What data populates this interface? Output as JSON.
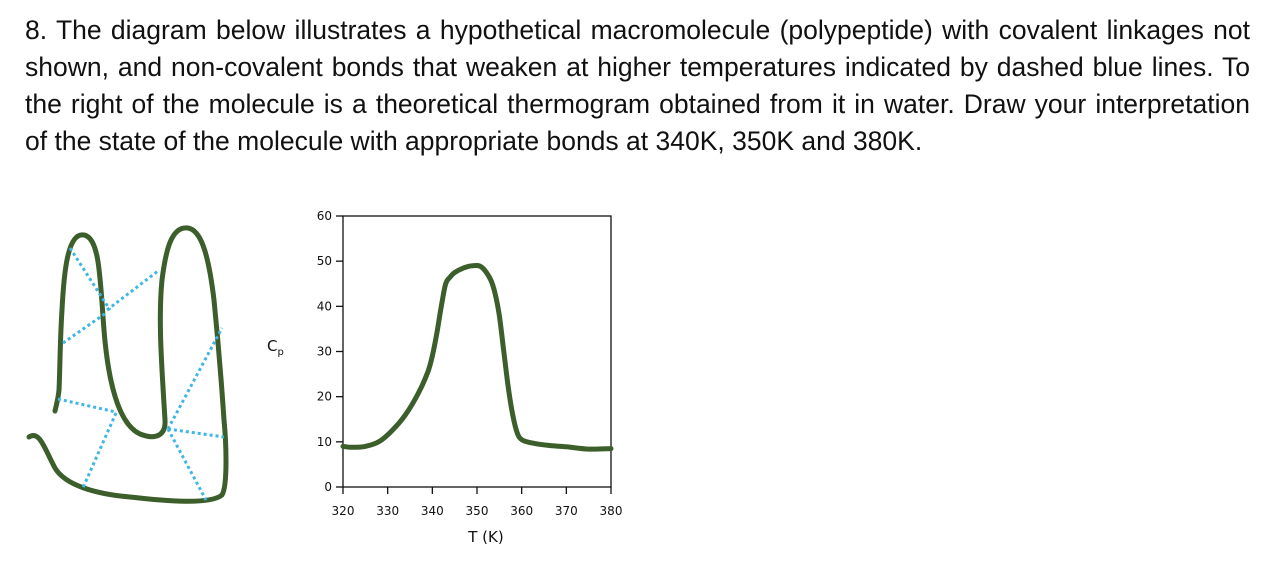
{
  "question": {
    "text": "8. The diagram below illustrates a hypothetical macromolecule (polypeptide) with covalent linkages not shown, and non-covalent bonds that weaken at higher temperatures indicated by dashed blue lines. To the right of the molecule is a theoretical thermogram obtained from it in water. Draw your interpretation of the state of the molecule with appropriate bonds at 340K, 350K and 380K."
  },
  "molecule": {
    "backbone_color": "#3b5e2b",
    "bond_color": "#3fb6e3"
  },
  "chart_data": {
    "type": "line",
    "title": "",
    "xlabel": "T (K)",
    "ylabel_main": "C",
    "ylabel_sub": "p",
    "xlim": [
      320,
      380
    ],
    "ylim": [
      0,
      60
    ],
    "xticks": [
      320,
      330,
      340,
      350,
      360,
      370,
      380
    ],
    "yticks": [
      0,
      10,
      20,
      30,
      40,
      50,
      60
    ],
    "line_color": "#3b5e2b",
    "series": [
      {
        "x": [
          320,
          322,
          325,
          328,
          331,
          334,
          337,
          339,
          340,
          341,
          342,
          343,
          344,
          345,
          347,
          349,
          351,
          353,
          354,
          355,
          356,
          357,
          358,
          359,
          360,
          362,
          366,
          370,
          375,
          380
        ],
        "y": [
          9,
          8.8,
          9,
          10,
          12.5,
          16,
          21,
          25.5,
          29,
          34,
          40,
          45,
          46.5,
          47.5,
          48.5,
          49,
          48.7,
          46,
          43,
          38,
          30,
          22,
          16,
          12,
          10.5,
          9.8,
          9.2,
          8.9,
          8.4,
          8.5
        ]
      }
    ]
  }
}
